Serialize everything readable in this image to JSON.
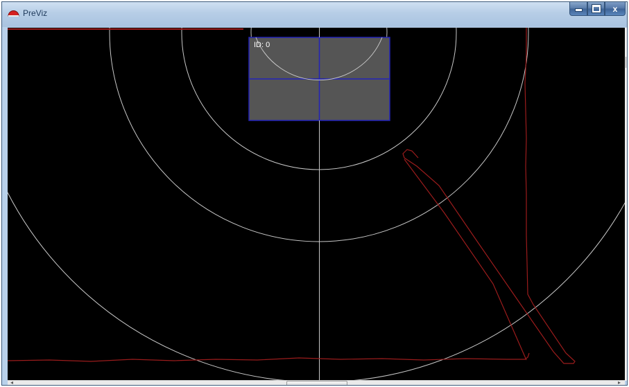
{
  "window": {
    "title": "PreViz"
  },
  "controls": {
    "minimize_icon": "minimize-icon",
    "maximize_icon": "maximize-icon",
    "close_glyph": "x"
  },
  "canvas": {
    "zone_label": "ID: 0"
  },
  "scrollbar": {
    "thumb_glyph": "III",
    "left_arrow": "◂",
    "right_arrow": "▸"
  },
  "colors": {
    "background": "#000000",
    "rings": "#c8c8c8",
    "zone_fill": "#555555",
    "zone_border": "#2323b8",
    "contour": "#9b1c1c",
    "titlebar": "#b9d1ea"
  }
}
